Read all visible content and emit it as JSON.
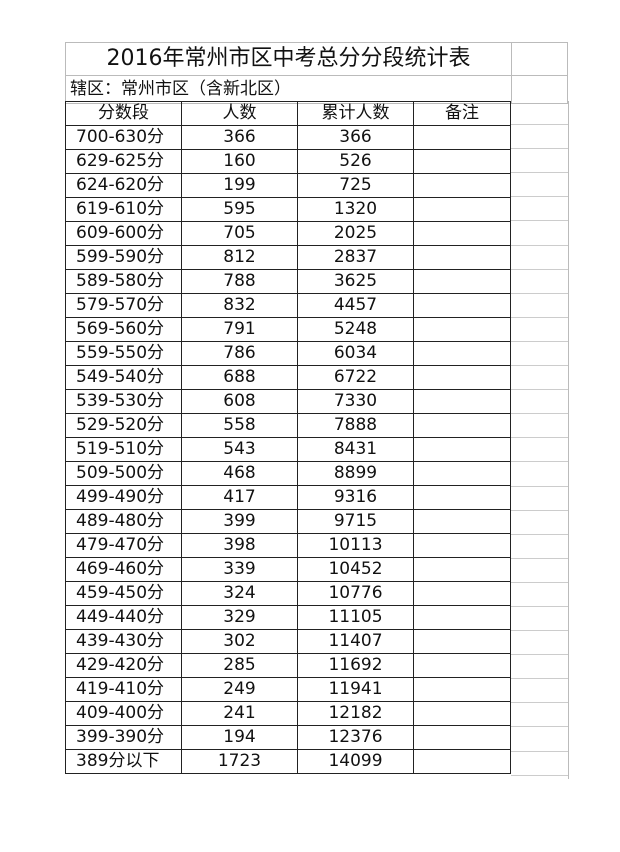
{
  "title": "2016年常州市区中考总分分段统计表",
  "district": "辖区：常州市区（含新北区）",
  "columns": [
    "分数段",
    "人数",
    "累计人数",
    "备注"
  ],
  "rows": [
    [
      "700-630分",
      "366",
      "366",
      ""
    ],
    [
      "629-625分",
      "160",
      "526",
      ""
    ],
    [
      "624-620分",
      "199",
      "725",
      ""
    ],
    [
      "619-610分",
      "595",
      "1320",
      ""
    ],
    [
      "609-600分",
      "705",
      "2025",
      ""
    ],
    [
      "599-590分",
      "812",
      "2837",
      ""
    ],
    [
      "589-580分",
      "788",
      "3625",
      ""
    ],
    [
      "579-570分",
      "832",
      "4457",
      ""
    ],
    [
      "569-560分",
      "791",
      "5248",
      ""
    ],
    [
      "559-550分",
      "786",
      "6034",
      ""
    ],
    [
      "549-540分",
      "688",
      "6722",
      ""
    ],
    [
      "539-530分",
      "608",
      "7330",
      ""
    ],
    [
      "529-520分",
      "558",
      "7888",
      ""
    ],
    [
      "519-510分",
      "543",
      "8431",
      ""
    ],
    [
      "509-500分",
      "468",
      "8899",
      ""
    ],
    [
      "499-490分",
      "417",
      "9316",
      ""
    ],
    [
      "489-480分",
      "399",
      "9715",
      ""
    ],
    [
      "479-470分",
      "398",
      "10113",
      ""
    ],
    [
      "469-460分",
      "339",
      "10452",
      ""
    ],
    [
      "459-450分",
      "324",
      "10776",
      ""
    ],
    [
      "449-440分",
      "329",
      "11105",
      ""
    ],
    [
      "439-430分",
      "302",
      "11407",
      ""
    ],
    [
      "429-420分",
      "285",
      "11692",
      ""
    ],
    [
      "419-410分",
      "249",
      "11941",
      ""
    ],
    [
      "409-400分",
      "241",
      "12182",
      ""
    ],
    [
      "399-390分",
      "194",
      "12376",
      ""
    ],
    [
      "389分以下",
      "1723",
      "14099",
      ""
    ]
  ]
}
